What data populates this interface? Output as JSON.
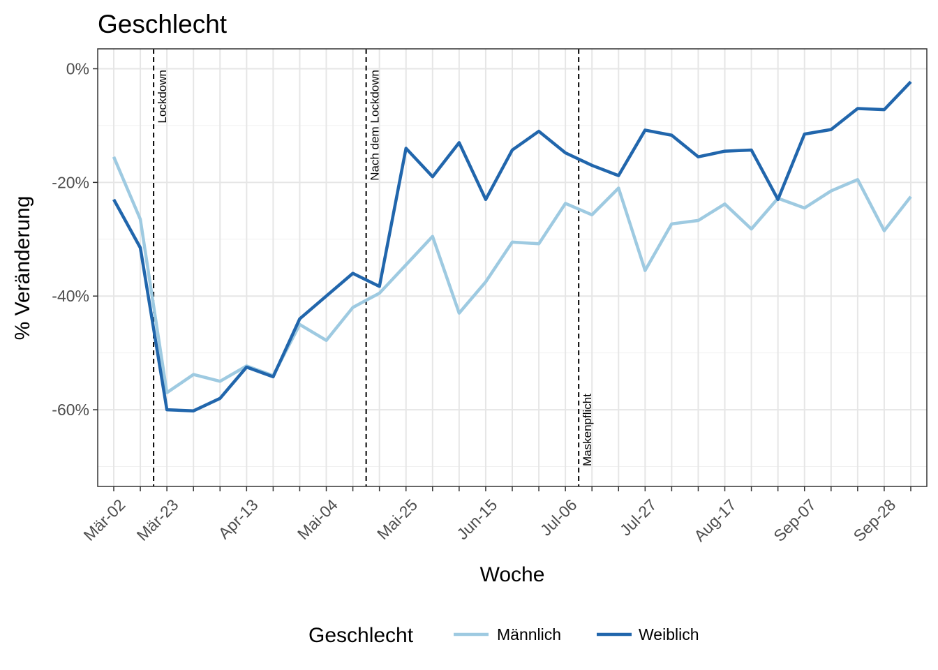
{
  "chart_data": {
    "type": "line",
    "title": "Geschlecht",
    "xlabel": "Woche",
    "ylabel": "% Veränderung",
    "y_unit": "%",
    "ylim": [
      -73.5,
      3.5
    ],
    "y_ticks": [
      0,
      -20,
      -40,
      -60
    ],
    "y_tick_labels": [
      "0%",
      "-20%",
      "-40%",
      "-60%"
    ],
    "y_minor_gridlines": [
      10,
      -10,
      -30,
      -50,
      -70
    ],
    "x_week_count": 31,
    "x_labels": [
      "Mär-02",
      "Mär-23",
      "Apr-13",
      "Mai-04",
      "Mai-25",
      "Jun-15",
      "Jul-06",
      "Jul-27",
      "Aug-17",
      "Sep-07",
      "Sep-28"
    ],
    "x_label_week_index": [
      0,
      2,
      5,
      8,
      11,
      14,
      17,
      20,
      23,
      26,
      29
    ],
    "x": [
      "2020-03-02",
      "2020-03-09",
      "2020-03-16",
      "2020-03-23",
      "2020-03-30",
      "2020-04-06",
      "2020-04-13",
      "2020-04-20",
      "2020-04-27",
      "2020-05-04",
      "2020-05-11",
      "2020-05-18",
      "2020-05-25",
      "2020-06-01",
      "2020-06-08",
      "2020-06-15",
      "2020-06-22",
      "2020-06-29",
      "2020-07-06",
      "2020-07-13",
      "2020-07-20",
      "2020-07-27",
      "2020-08-03",
      "2020-08-10",
      "2020-08-17",
      "2020-08-24",
      "2020-08-31",
      "2020-09-07",
      "2020-09-14",
      "2020-09-21",
      "2020-09-28"
    ],
    "series": [
      {
        "name": "Männlich",
        "color": "#9ECAE1",
        "values": [
          -15.5,
          -26.5,
          -57.0,
          -53.8,
          -55.0,
          -52.3,
          -54.0,
          -45.0,
          -47.8,
          -42.0,
          -39.5,
          -34.5,
          -29.5,
          -43.0,
          -37.5,
          -30.5,
          -30.8,
          -23.7,
          -25.7,
          -21.0,
          -35.5,
          -27.3,
          -26.7,
          -23.8,
          -28.2,
          -22.8,
          -24.5,
          -21.5,
          -19.5,
          -28.5,
          -22.5
        ]
      },
      {
        "name": "Weiblich",
        "color": "#2166AC",
        "values": [
          -23.0,
          -31.5,
          -60.0,
          -60.2,
          -58.0,
          -52.5,
          -54.2,
          -44.0,
          -40.0,
          -36.0,
          -38.3,
          -14.0,
          -19.0,
          -13.0,
          -23.0,
          -14.3,
          -11.0,
          -14.8,
          -17.0,
          -18.8,
          -10.8,
          -11.7,
          -15.5,
          -14.5,
          -14.3,
          -23.0,
          -11.5,
          -10.7,
          -7.0,
          -7.2,
          -2.3
        ]
      }
    ],
    "annotations": [
      {
        "label": "Lockdown",
        "x_week": 1.5
      },
      {
        "label": "Nach dem Lockdown",
        "x_week": 9.5
      },
      {
        "label": "Maskenpflicht",
        "x_week": 17.5
      }
    ],
    "legend": {
      "title": "Geschlecht",
      "position": "bottom"
    },
    "grid": true
  }
}
